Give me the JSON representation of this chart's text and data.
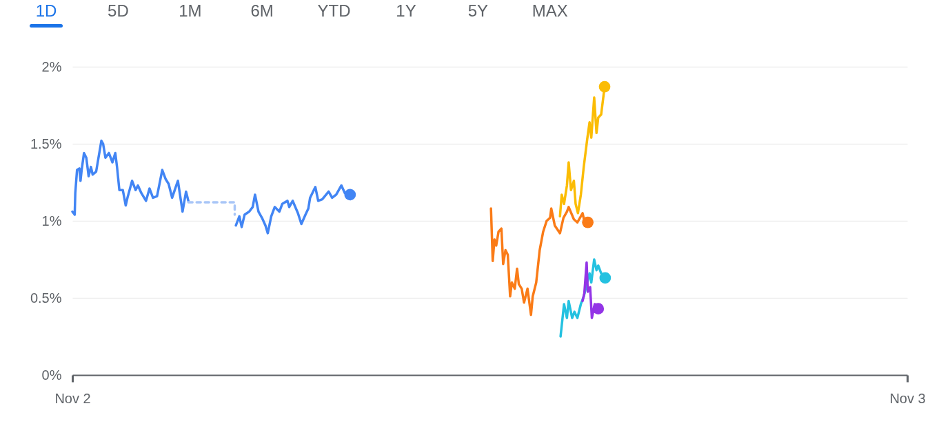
{
  "chart_data": {
    "type": "line",
    "annotations": [
      "1D",
      "5D",
      "1M",
      "6M",
      "YTD",
      "1Y",
      "5Y",
      "MAX"
    ],
    "xlim": [
      "--11-02T00:00",
      "--11-03T00:00"
    ],
    "xticks": [
      {
        "value": "--11-02",
        "label": "Nov 2"
      },
      {
        "value": "--11-03",
        "label": "Nov 3"
      }
    ],
    "ylim": [
      0,
      2
    ],
    "yticks": [
      {
        "value": 0,
        "label": "0%"
      },
      {
        "value": 0.5,
        "label": "0.5%"
      },
      {
        "value": 1,
        "label": "1%"
      },
      {
        "value": 1.5,
        "label": "1.5%"
      },
      {
        "value": 2,
        "label": "2%"
      }
    ],
    "grid": "y",
    "series": [
      {
        "color": "#4285f4",
        "x": [
          "--11-02T00:00",
          "--11-02T00:04",
          "--11-02T00:05",
          "--11-02T00:08",
          "--11-02T00:12",
          "--11-02T00:14",
          "--11-02T00:16",
          "--11-02T00:20",
          "--11-02T00:24",
          "--11-02T00:28",
          "--11-02T00:32",
          "--11-02T00:35",
          "--11-02T00:41",
          "--11-02T00:50",
          "--11-02T00:53",
          "--11-02T00:57",
          "--11-02T01:03",
          "--11-02T01:09",
          "--11-02T01:14",
          "--11-02T01:17",
          "--11-02T01:21",
          "--11-02T01:27",
          "--11-02T01:32",
          "--11-02T01:35",
          "--11-02T01:43",
          "--11-02T01:49",
          "--11-02T01:53",
          "--11-02T01:59",
          "--11-02T02:07",
          "--11-02T02:13",
          "--11-02T02:19",
          "--11-02T02:26",
          "--11-02T02:35",
          "--11-02T02:41",
          "--11-02T02:46",
          "--11-02T02:52",
          "--11-02T03:02",
          "--11-02T03:10",
          "--11-02T03:16",
          "--11-02T03:20",
          "--11-02T04:00",
          "--11-02T04:42",
          "--11-02T04:48",
          "--11-02T04:52",
          "--11-02T04:57",
          "--11-02T05:05",
          "--11-02T05:11",
          "--11-02T05:15",
          "--11-02T05:21",
          "--11-02T05:27",
          "--11-02T05:33",
          "--11-02T05:37",
          "--11-02T05:43",
          "--11-02T05:49",
          "--11-02T05:57",
          "--11-02T06:02",
          "--11-02T06:11",
          "--11-02T06:14",
          "--11-02T06:20",
          "--11-02T06:29",
          "--11-02T06:35",
          "--11-02T06:42",
          "--11-02T06:47",
          "--11-02T06:50",
          "--11-02T06:59",
          "--11-02T07:04",
          "--11-02T07:11",
          "--11-02T07:22",
          "--11-02T07:28",
          "--11-02T07:35",
          "--11-02T07:44",
          "--11-02T07:50",
          "--11-02T07:59"
        ],
        "values": [
          1.06,
          1.04,
          1.18,
          1.33,
          1.34,
          1.26,
          1.33,
          1.44,
          1.41,
          1.29,
          1.35,
          1.3,
          1.32,
          1.52,
          1.5,
          1.41,
          1.44,
          1.38,
          1.44,
          1.35,
          1.2,
          1.2,
          1.1,
          1.15,
          1.26,
          1.2,
          1.23,
          1.18,
          1.13,
          1.21,
          1.15,
          1.16,
          1.33,
          1.27,
          1.24,
          1.15,
          1.26,
          1.06,
          1.19,
          1.13,
          null,
          0.97,
          1.03,
          0.96,
          1.04,
          1.06,
          1.09,
          1.17,
          1.06,
          1.02,
          0.97,
          0.92,
          1.03,
          1.09,
          1.06,
          1.11,
          1.13,
          1.09,
          1.13,
          1.05,
          0.98,
          1.04,
          1.08,
          1.15,
          1.22,
          1.13,
          1.14,
          1.19,
          1.15,
          1.17,
          1.23,
          1.18,
          1.17
        ]
      },
      {
        "color": "#a9c6f7",
        "line_style": "dashed",
        "x": [
          "--11-02T03:20",
          "--11-02T04:40",
          "--11-02T04:40"
        ],
        "values": [
          1.12,
          1.12,
          1.04
        ]
      },
      {
        "color": "#fa7b17",
        "x": [
          "--11-02T12:02",
          "--11-02T12:05",
          "--11-02T12:08",
          "--11-02T12:11",
          "--11-02T12:15",
          "--11-02T12:20",
          "--11-02T12:23",
          "--11-02T12:27",
          "--11-02T12:31",
          "--11-02T12:35",
          "--11-02T12:38",
          "--11-02T12:43",
          "--11-02T12:47",
          "--11-02T12:50",
          "--11-02T12:55",
          "--11-02T12:59",
          "--11-02T13:05",
          "--11-02T13:11",
          "--11-02T13:14",
          "--11-02T13:20",
          "--11-02T13:26",
          "--11-02T13:32",
          "--11-02T13:38",
          "--11-02T13:44",
          "--11-02T13:46",
          "--11-02T13:52",
          "--11-02T14:01",
          "--11-02T14:07",
          "--11-02T14:13",
          "--11-02T14:16",
          "--11-02T14:25",
          "--11-02T14:31",
          "--11-02T14:40",
          "--11-02T14:43",
          "--11-02T14:49"
        ],
        "values": [
          1.08,
          0.74,
          0.88,
          0.84,
          0.93,
          0.95,
          0.72,
          0.81,
          0.78,
          0.51,
          0.6,
          0.56,
          0.69,
          0.59,
          0.56,
          0.47,
          0.56,
          0.39,
          0.51,
          0.6,
          0.81,
          0.93,
          1.0,
          1.02,
          1.08,
          0.97,
          0.92,
          1.02,
          1.06,
          1.09,
          1.01,
          0.99,
          1.05,
          1.0,
          0.99
        ]
      },
      {
        "color": "#fbbc04",
        "x": [
          "--11-02T14:01",
          "--11-02T14:04",
          "--11-02T14:08",
          "--11-02T14:13",
          "--11-02T14:16",
          "--11-02T14:20",
          "--11-02T14:25",
          "--11-02T14:28",
          "--11-02T14:32",
          "--11-02T14:37",
          "--11-02T14:42",
          "--11-02T14:48",
          "--11-02T14:52",
          "--11-02T14:55",
          "--11-02T15:00",
          "--11-02T15:04",
          "--11-02T15:07",
          "--11-02T15:12",
          "--11-02T15:18"
        ],
        "values": [
          1.03,
          1.17,
          1.11,
          1.23,
          1.38,
          1.2,
          1.26,
          1.11,
          1.05,
          1.17,
          1.35,
          1.53,
          1.64,
          1.54,
          1.8,
          1.57,
          1.67,
          1.69,
          1.87
        ]
      },
      {
        "color": "#24c1e0",
        "x": [
          "--11-02T14:02",
          "--11-02T14:08",
          "--11-02T14:13",
          "--11-02T14:16",
          "--11-02T14:22",
          "--11-02T14:26",
          "--11-02T14:31",
          "--11-02T14:37",
          "--11-02T14:42",
          "--11-02T14:46",
          "--11-02T14:52",
          "--11-02T14:55",
          "--11-02T15:00",
          "--11-02T15:04",
          "--11-02T15:07",
          "--11-02T15:12",
          "--11-02T15:19"
        ],
        "values": [
          0.25,
          0.46,
          0.37,
          0.48,
          0.37,
          0.41,
          0.37,
          0.46,
          0.51,
          0.57,
          0.66,
          0.6,
          0.75,
          0.68,
          0.71,
          0.66,
          0.63
        ]
      },
      {
        "color": "#9334e6",
        "x": [
          "--11-02T14:40",
          "--11-02T14:43",
          "--11-02T14:47",
          "--11-02T14:49",
          "--11-02T14:53",
          "--11-02T14:56",
          "--11-02T15:01",
          "--11-02T15:07"
        ],
        "values": [
          0.48,
          0.53,
          0.73,
          0.54,
          0.57,
          0.37,
          0.46,
          0.43
        ]
      }
    ]
  }
}
